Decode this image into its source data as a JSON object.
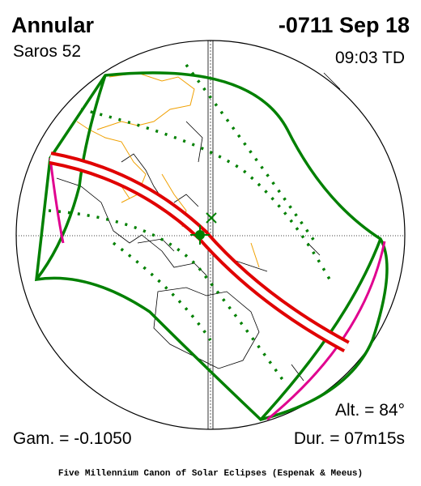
{
  "header": {
    "eclipse_type": "Annular",
    "saros": "Saros  52",
    "date": "-0711 Sep 18",
    "time": "09:03 TD"
  },
  "stats": {
    "altitude": "Alt. = 84°",
    "gamma": "Gam. = -0.1050",
    "duration": "Dur. = 07m15s"
  },
  "footer": "Five Millennium Canon of Solar Eclipses (Espenak & Meeus)"
}
